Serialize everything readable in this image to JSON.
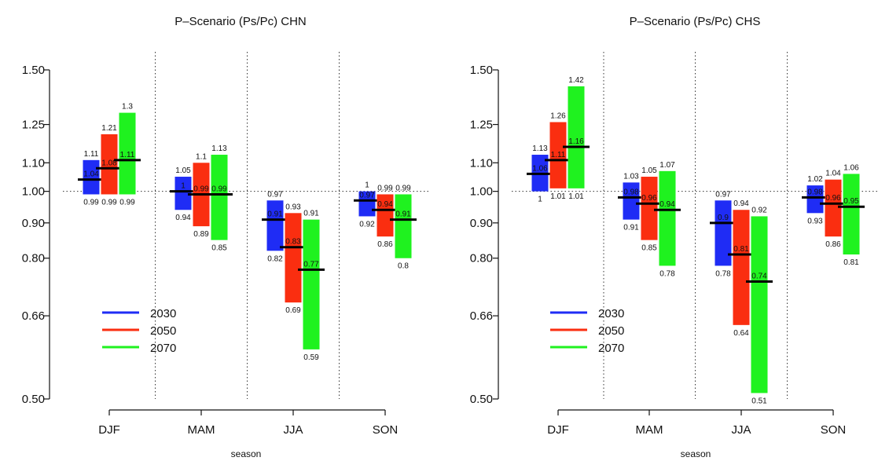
{
  "chart_data": [
    {
      "type": "bar",
      "title": "P–Scenario (Ps/Pc) CHN",
      "xlabel": "season",
      "ylabel": "",
      "scale": "log",
      "ylim": [
        0.5,
        1.5
      ],
      "yticks": [
        "0.50",
        "0.66",
        "0.80",
        "0.90",
        "1.00",
        "1.10",
        "1.25",
        "1.50"
      ],
      "yticks_values": [
        0.5,
        0.66,
        0.8,
        0.9,
        1.0,
        1.1,
        1.25,
        1.5
      ],
      "categories": [
        "DJF",
        "MAM",
        "JJA",
        "SON"
      ],
      "reference_line": 1.0,
      "legend": "bottom-left",
      "series": [
        {
          "name": "2030",
          "color": "#1f2cf5",
          "low": [
            0.99,
            0.94,
            0.82,
            0.92
          ],
          "mid": [
            1.04,
            1,
            0.91,
            0.97
          ],
          "high": [
            1.11,
            1.05,
            0.97,
            1
          ],
          "low_labels": [
            "0.99",
            "0.94",
            "0.82",
            "0.92"
          ],
          "mid_labels": [
            "1.04",
            "1",
            "0.91",
            "0.97"
          ],
          "high_labels": [
            "1.11",
            "1.05",
            "0.97",
            "1"
          ]
        },
        {
          "name": "2050",
          "color": "#fa2e10",
          "low": [
            0.99,
            0.89,
            0.69,
            0.86
          ],
          "mid": [
            1.08,
            0.99,
            0.83,
            0.94
          ],
          "high": [
            1.21,
            1.1,
            0.93,
            0.99
          ],
          "low_labels": [
            "0.99",
            "0.89",
            "0.69",
            "0.86"
          ],
          "mid_labels": [
            "1.08",
            "0.99",
            "0.83",
            "0.94"
          ],
          "high_labels": [
            "1.21",
            "1.1",
            "0.93",
            "0.99"
          ]
        },
        {
          "name": "2070",
          "color": "#1ff21f",
          "low": [
            0.99,
            0.85,
            0.59,
            0.8
          ],
          "mid": [
            1.11,
            0.99,
            0.77,
            0.91
          ],
          "high": [
            1.3,
            1.13,
            0.91,
            0.99
          ],
          "low_labels": [
            "0.99",
            "0.85",
            "0.59",
            "0.8"
          ],
          "mid_labels": [
            "1.11",
            "0.99",
            "0.77",
            "0.91"
          ],
          "high_labels": [
            "1.3",
            "1.13",
            "0.91",
            "0.99"
          ]
        }
      ]
    },
    {
      "type": "bar",
      "title": "P–Scenario (Ps/Pc) CHS",
      "xlabel": "season",
      "ylabel": "",
      "scale": "log",
      "ylim": [
        0.5,
        1.5
      ],
      "yticks": [
        "0.50",
        "0.66",
        "0.80",
        "0.90",
        "1.00",
        "1.10",
        "1.25",
        "1.50"
      ],
      "yticks_values": [
        0.5,
        0.66,
        0.8,
        0.9,
        1.0,
        1.1,
        1.25,
        1.5
      ],
      "categories": [
        "DJF",
        "MAM",
        "JJA",
        "SON"
      ],
      "reference_line": 1.0,
      "legend": "bottom-left",
      "series": [
        {
          "name": "2030",
          "color": "#1f2cf5",
          "low": [
            1,
            0.91,
            0.78,
            0.93
          ],
          "mid": [
            1.06,
            0.98,
            0.9,
            0.98
          ],
          "high": [
            1.13,
            1.03,
            0.97,
            1.02
          ],
          "low_labels": [
            "1",
            "0.91",
            "0.78",
            "0.93"
          ],
          "mid_labels": [
            "1.06",
            "0.98",
            "0.9",
            "0.98"
          ],
          "high_labels": [
            "1.13",
            "1.03",
            "0.97",
            "1.02"
          ]
        },
        {
          "name": "2050",
          "color": "#fa2e10",
          "low": [
            1.01,
            0.85,
            0.64,
            0.86
          ],
          "mid": [
            1.11,
            0.96,
            0.81,
            0.96
          ],
          "high": [
            1.26,
            1.05,
            0.94,
            1.04
          ],
          "low_labels": [
            "1.01",
            "0.85",
            "0.64",
            "0.86"
          ],
          "mid_labels": [
            "1.11",
            "0.96",
            "0.81",
            "0.96"
          ],
          "high_labels": [
            "1.26",
            "1.05",
            "0.94",
            "1.04"
          ]
        },
        {
          "name": "2070",
          "color": "#1ff21f",
          "low": [
            1.01,
            0.78,
            0.51,
            0.81
          ],
          "mid": [
            1.16,
            0.94,
            0.74,
            0.95
          ],
          "high": [
            1.42,
            1.07,
            0.92,
            1.06
          ],
          "low_labels": [
            "1.01",
            "0.78",
            "0.51",
            "0.81"
          ],
          "mid_labels": [
            "1.16",
            "0.94",
            "0.74",
            "0.95"
          ],
          "high_labels": [
            "1.42",
            "1.07",
            "0.92",
            "1.06"
          ]
        }
      ]
    }
  ]
}
